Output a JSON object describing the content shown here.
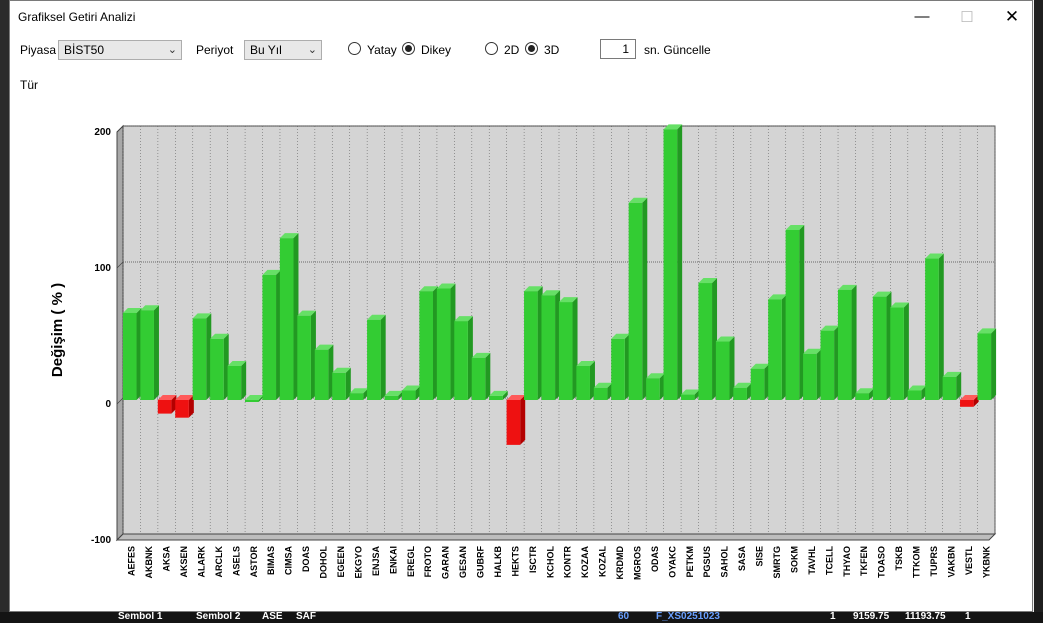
{
  "window": {
    "title": "Grafiksel Getiri Analizi",
    "minimize_glyph": "—",
    "maximize_glyph": "☐",
    "close_glyph": "✕"
  },
  "controls": {
    "market_label": "Piyasa",
    "market_value": "BİST50",
    "period_label": "Periyot",
    "period_value": "Bu Yıl",
    "orientation_options": [
      "Yatay",
      "Dikey"
    ],
    "orientation_selected": "Dikey",
    "dimension_options": [
      "2D",
      "3D"
    ],
    "dimension_selected": "3D",
    "refresh_value": "1",
    "refresh_label": "sn. Güncelle",
    "type_label": "Tür"
  },
  "background_strip": {
    "items": [
      "Sembol 1",
      "Sembol 2",
      "ASE",
      "SAF",
      "60",
      "F_XS0251023",
      "1",
      "9159.75",
      "11193.75",
      "1"
    ]
  },
  "chart_data": {
    "type": "bar",
    "ylabel": "Değişim ( % )",
    "ylim": [
      -100,
      200
    ],
    "yticks": [
      200,
      100,
      0,
      -100
    ],
    "grid": true,
    "three_d": true,
    "positive_color": "#33cc33",
    "negative_color": "#ee1111",
    "categories": [
      "AEFES",
      "AKBNK",
      "AKSA",
      "AKSEN",
      "ALARK",
      "ARCLK",
      "ASELS",
      "ASTOR",
      "BIMAS",
      "CIMSA",
      "DOAS",
      "DOHOL",
      "EGEEN",
      "EKGYO",
      "ENJSA",
      "ENKAI",
      "EREGL",
      "FROTO",
      "GARAN",
      "GESAN",
      "GUBRF",
      "HALKB",
      "HEKTS",
      "ISCTR",
      "KCHOL",
      "KONTR",
      "KOZAA",
      "KOZAL",
      "KRDMD",
      "MGROS",
      "ODAS",
      "OYAKC",
      "PETKM",
      "PGSUS",
      "SAHOL",
      "SASA",
      "SISE",
      "SMRTG",
      "SOKM",
      "TAVHL",
      "TCELL",
      "THYAO",
      "TKFEN",
      "TOASO",
      "TSKB",
      "TTKOM",
      "TUPRS",
      "VAKBN",
      "VESTL",
      "YKBNK"
    ],
    "values": [
      64,
      66,
      -10,
      -13,
      60,
      45,
      25,
      0,
      92,
      119,
      62,
      37,
      20,
      5,
      59,
      3,
      7,
      80,
      82,
      58,
      31,
      3,
      -33,
      80,
      77,
      72,
      25,
      9,
      45,
      145,
      16,
      199,
      4,
      86,
      43,
      9,
      23,
      74,
      125,
      34,
      51,
      81,
      5,
      76,
      68,
      7,
      104,
      17,
      -5,
      49
    ]
  }
}
